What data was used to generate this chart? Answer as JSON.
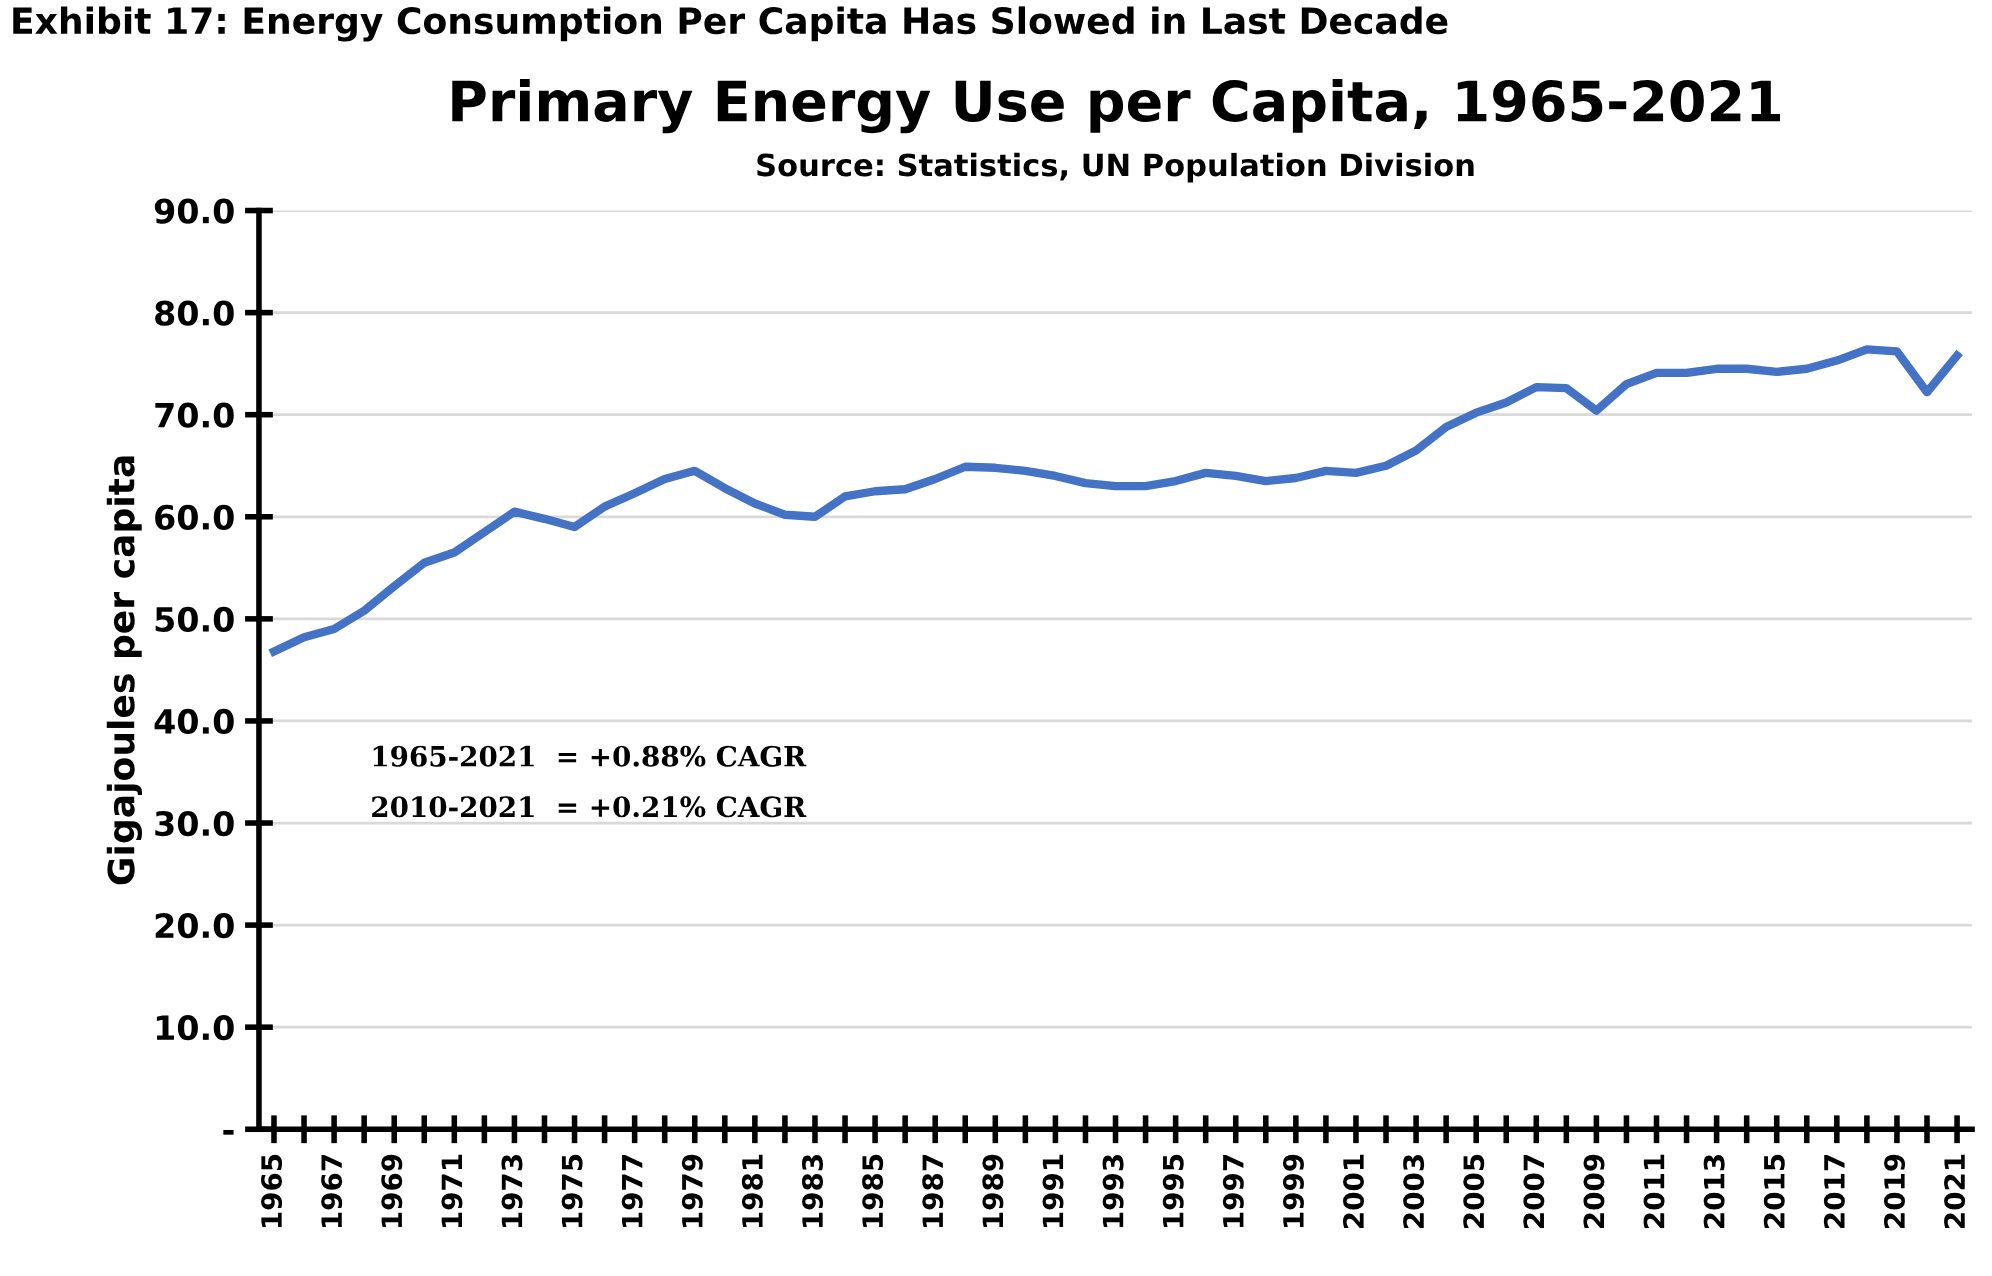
{
  "chart_data": {
    "type": "line",
    "title": "Primary Energy Use per Capita, 1965-2021",
    "subtitle": "Source: Statistics, UN Population Division",
    "ylabel": "Gigajoules per capita",
    "annotations": [
      "Exhibit 17: Energy Consumption Per Capita Has Slowed in Last Decade",
      "1965-2021  = +0.88% CAGR",
      "2010-2021  = +0.21% CAGR"
    ],
    "categories": [
      "1965",
      null,
      "1967",
      null,
      "1969",
      null,
      "1971",
      null,
      "1973",
      null,
      "1975",
      null,
      "1977",
      null,
      "1979",
      null,
      "1981",
      null,
      "1983",
      null,
      "1985",
      null,
      "1987",
      null,
      "1989",
      null,
      "1991",
      null,
      "1993",
      null,
      "1995",
      null,
      "1997",
      null,
      "1999",
      null,
      "2001",
      null,
      "2003",
      null,
      "2005",
      null,
      "2007",
      null,
      "2009",
      null,
      "2011",
      null,
      "2013",
      null,
      "2015",
      null,
      "2017",
      null,
      "2019",
      null,
      "2021"
    ],
    "series": [
      {
        "color": "#4472c4",
        "values": [
          46.8,
          48.2,
          49.0,
          50.8,
          53.2,
          55.5,
          56.5,
          58.5,
          60.5,
          59.8,
          59.0,
          61.0,
          62.3,
          63.7,
          64.5,
          62.8,
          61.3,
          60.2,
          60.0,
          62.0,
          62.5,
          62.7,
          63.7,
          64.9,
          64.8,
          64.5,
          64.0,
          63.3,
          63.0,
          63.0,
          63.5,
          64.3,
          64.0,
          63.5,
          63.8,
          64.5,
          64.3,
          65.0,
          66.5,
          68.8,
          70.2,
          71.2,
          72.7,
          72.6,
          70.4,
          73.0,
          74.1,
          74.1,
          74.5,
          74.5,
          74.2,
          74.5,
          75.3,
          76.4,
          76.2,
          72.2,
          75.8
        ]
      }
    ],
    "ylim": [
      0,
      90
    ],
    "yticks": [
      {
        "value": 0,
        "label": "-"
      },
      {
        "value": 10,
        "label": "10.0"
      },
      {
        "value": 20,
        "label": "20.0"
      },
      {
        "value": 30,
        "label": "30.0"
      },
      {
        "value": 40,
        "label": "40.0"
      },
      {
        "value": 50,
        "label": "50.0"
      },
      {
        "value": 60,
        "label": "60.0"
      },
      {
        "value": 70,
        "label": "70.0"
      },
      {
        "value": 80,
        "label": "80.0"
      },
      {
        "value": 90,
        "label": "90.0"
      }
    ],
    "grid": "y",
    "marker": "none",
    "line_style": "solid"
  }
}
